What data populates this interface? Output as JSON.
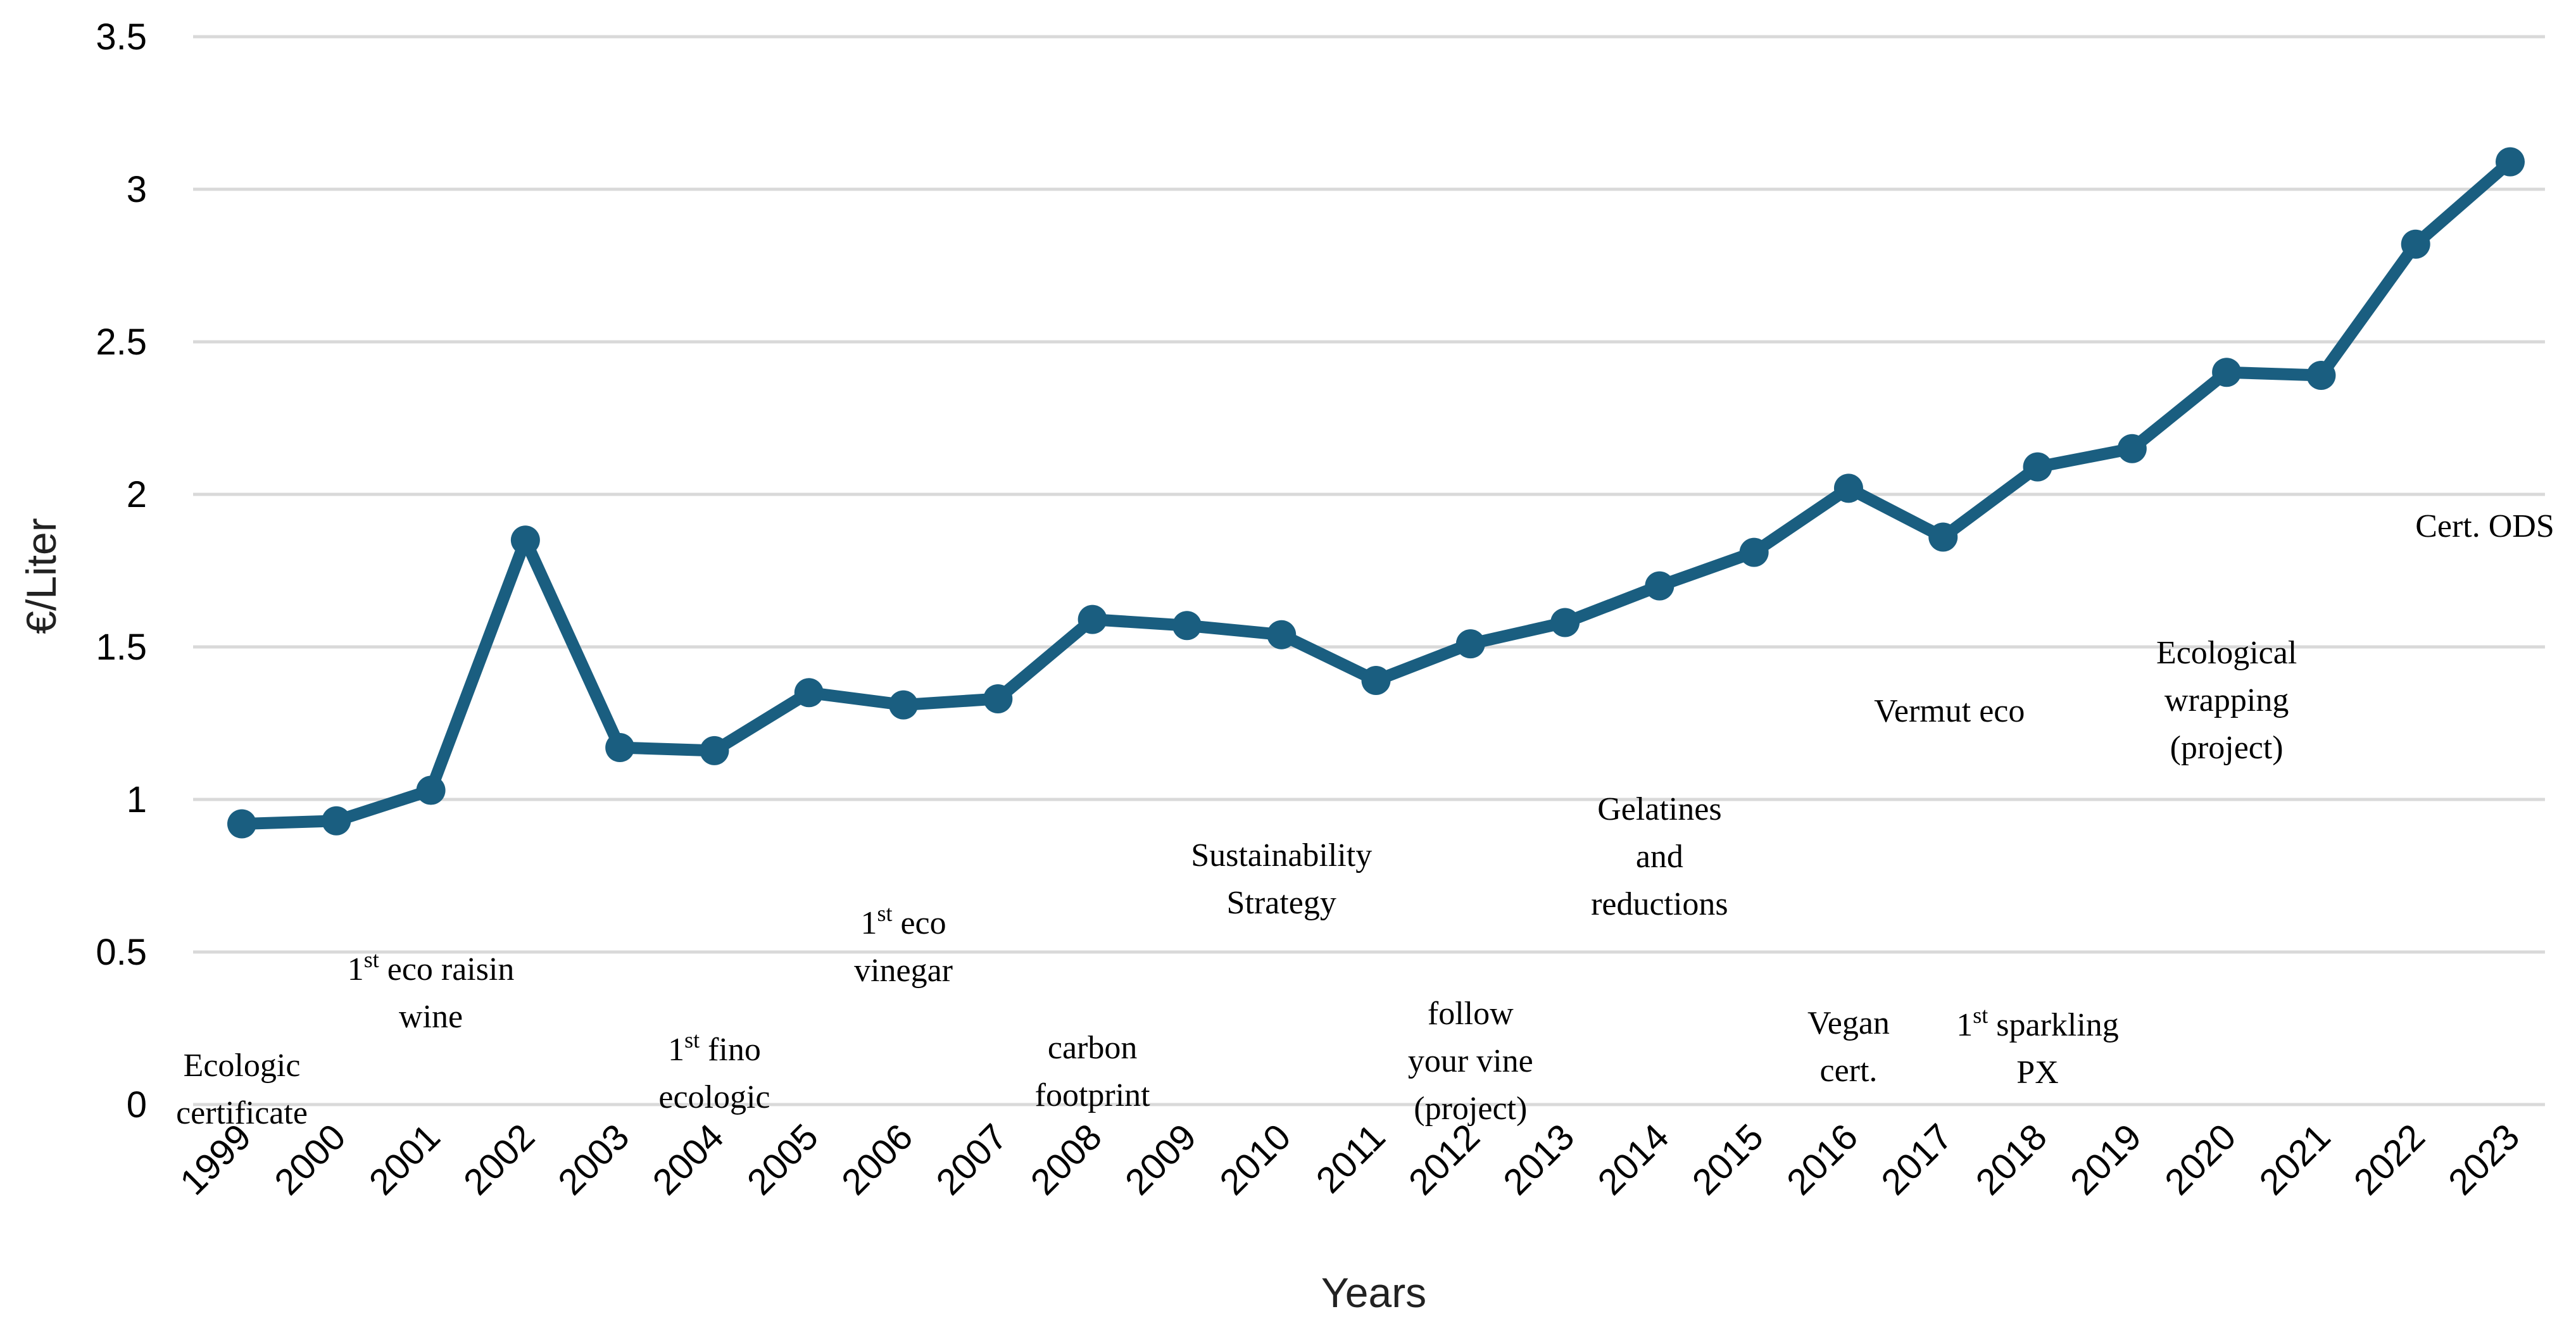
{
  "chart_data": {
    "type": "line",
    "title": "",
    "xlabel": "Years",
    "ylabel": "€/Liter",
    "ylim": [
      0,
      3.5
    ],
    "yticks": [
      "0",
      "0.5",
      "1",
      "1.5",
      "2",
      "2.5",
      "3",
      "3.5"
    ],
    "grid": true,
    "categories": [
      "1999",
      "2000",
      "2001",
      "2002",
      "2003",
      "2004",
      "2005",
      "2006",
      "2007",
      "2008",
      "2009",
      "2010",
      "2011",
      "2012",
      "2013",
      "2014",
      "2015",
      "2016",
      "2017",
      "2018",
      "2019",
      "2020",
      "2021",
      "2022",
      "2023"
    ],
    "series": [
      {
        "name": "€/Liter",
        "color": "#1a5e80",
        "values": [
          0.92,
          0.93,
          1.03,
          1.85,
          1.17,
          1.16,
          1.35,
          1.31,
          1.33,
          1.59,
          1.57,
          1.54,
          1.39,
          1.51,
          1.58,
          1.7,
          1.81,
          2.02,
          1.86,
          2.09,
          2.15,
          2.4,
          2.39,
          2.82,
          3.09
        ]
      }
    ],
    "annotations": [
      {
        "year": "1999",
        "lines": [
          {
            "text": "Ecologic"
          },
          {
            "text": "certificate"
          }
        ]
      },
      {
        "year": "2001",
        "lines": [
          {
            "pre": "1",
            "sup": "st",
            "text": " eco raisin"
          },
          {
            "text": "wine"
          }
        ]
      },
      {
        "year": "2004",
        "lines": [
          {
            "pre": "1",
            "sup": "st",
            "text": " fino"
          },
          {
            "text": "ecologic"
          }
        ]
      },
      {
        "year": "2006",
        "lines": [
          {
            "pre": "1",
            "sup": "st",
            "text": " eco"
          },
          {
            "text": "vinegar"
          }
        ]
      },
      {
        "year": "2008",
        "lines": [
          {
            "text": "carbon"
          },
          {
            "text": "footprint"
          }
        ]
      },
      {
        "year": "2010",
        "lines": [
          {
            "text": "Sustainability"
          },
          {
            "text": "Strategy"
          }
        ]
      },
      {
        "year": "2012",
        "lines": [
          {
            "text": "follow"
          },
          {
            "text": "your vine"
          },
          {
            "text": "(project)"
          }
        ]
      },
      {
        "year": "2014",
        "lines": [
          {
            "text": "Gelatines"
          },
          {
            "text": "and"
          },
          {
            "text": "reductions"
          }
        ]
      },
      {
        "year": "2016",
        "lines": [
          {
            "text": "Vegan"
          },
          {
            "text": "cert."
          }
        ]
      },
      {
        "year": "2017",
        "lines": [
          {
            "text": "Vermut eco"
          }
        ]
      },
      {
        "year": "2018",
        "lines": [
          {
            "pre": "1",
            "sup": "st",
            "text": " sparkling"
          },
          {
            "text": "PX"
          }
        ]
      },
      {
        "year": "2020",
        "lines": [
          {
            "text": "Ecological"
          },
          {
            "text": "wrapping"
          },
          {
            "text": "(project)"
          }
        ]
      },
      {
        "year": "2023",
        "lines": [
          {
            "text": "Cert. ODS"
          }
        ]
      }
    ]
  }
}
